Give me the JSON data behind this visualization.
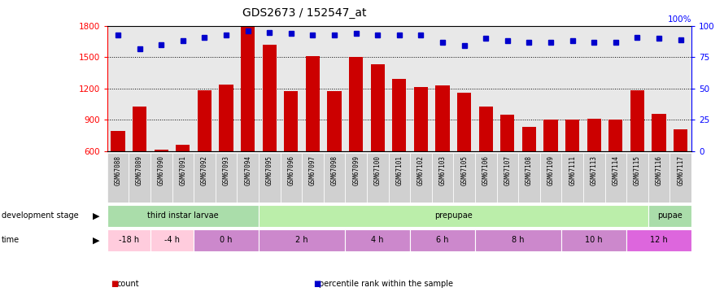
{
  "title": "GDS2673 / 152547_at",
  "samples": [
    "GSM67088",
    "GSM67089",
    "GSM67090",
    "GSM67091",
    "GSM67092",
    "GSM67093",
    "GSM67094",
    "GSM67095",
    "GSM67096",
    "GSM67097",
    "GSM67098",
    "GSM67099",
    "GSM67100",
    "GSM67101",
    "GSM67102",
    "GSM67103",
    "GSM67105",
    "GSM67106",
    "GSM67107",
    "GSM67108",
    "GSM67109",
    "GSM67111",
    "GSM67113",
    "GSM67114",
    "GSM67115",
    "GSM67116",
    "GSM67117"
  ],
  "counts": [
    790,
    1030,
    610,
    660,
    1185,
    1240,
    1800,
    1620,
    1175,
    1510,
    1175,
    1500,
    1430,
    1290,
    1215,
    1230,
    1160,
    1030,
    950,
    835,
    900,
    900,
    910,
    905,
    1185,
    955,
    810
  ],
  "percentile_ranks": [
    93,
    82,
    85,
    88,
    91,
    93,
    96,
    95,
    94,
    93,
    93,
    94,
    93,
    93,
    93,
    87,
    84,
    90,
    88,
    87,
    87,
    88,
    87,
    87,
    91,
    90,
    89
  ],
  "ylim_left": [
    600,
    1800
  ],
  "ylim_right": [
    0,
    100
  ],
  "yticks_left": [
    600,
    900,
    1200,
    1500,
    1800
  ],
  "yticks_right": [
    0,
    25,
    50,
    75,
    100
  ],
  "bar_color": "#cc0000",
  "dot_color": "#0000cc",
  "chart_bg": "#e8e8e8",
  "label_bg": "#c8c8c8",
  "dev_stage_row": {
    "label": "development stage",
    "groups": [
      {
        "name": "third instar larvae",
        "start": 0,
        "end": 7,
        "color": "#aaddaa"
      },
      {
        "name": "prepupae",
        "start": 7,
        "end": 25,
        "color": "#bbeeaa"
      },
      {
        "name": "pupae",
        "start": 25,
        "end": 27,
        "color": "#aaddaa"
      }
    ]
  },
  "time_row": {
    "label": "time",
    "groups": [
      {
        "name": "-18 h",
        "start": 0,
        "end": 2,
        "color": "#ffccdd"
      },
      {
        "name": "-4 h",
        "start": 2,
        "end": 4,
        "color": "#ffccdd"
      },
      {
        "name": "0 h",
        "start": 4,
        "end": 7,
        "color": "#cc88cc"
      },
      {
        "name": "2 h",
        "start": 7,
        "end": 11,
        "color": "#cc88cc"
      },
      {
        "name": "4 h",
        "start": 11,
        "end": 14,
        "color": "#cc88cc"
      },
      {
        "name": "6 h",
        "start": 14,
        "end": 17,
        "color": "#cc88cc"
      },
      {
        "name": "8 h",
        "start": 17,
        "end": 21,
        "color": "#cc88cc"
      },
      {
        "name": "10 h",
        "start": 21,
        "end": 24,
        "color": "#cc88cc"
      },
      {
        "name": "12 h",
        "start": 24,
        "end": 27,
        "color": "#dd66dd"
      }
    ]
  },
  "legend": [
    {
      "label": "count",
      "color": "#cc0000"
    },
    {
      "label": "percentile rank within the sample",
      "color": "#0000cc"
    }
  ]
}
